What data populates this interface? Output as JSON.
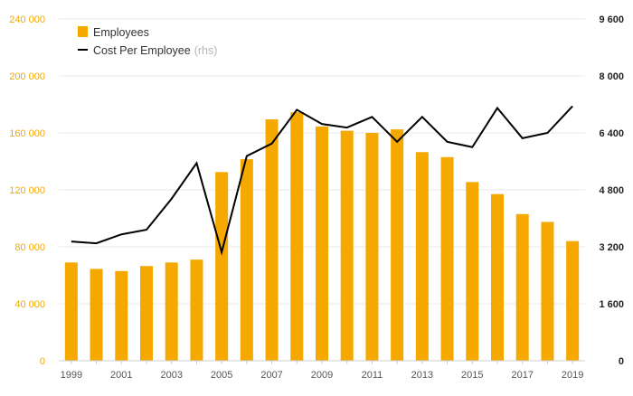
{
  "chart_data": {
    "type": "bar",
    "categories": [
      "1999",
      "2000",
      "2001",
      "2002",
      "2003",
      "2004",
      "2005",
      "2006",
      "2007",
      "2008",
      "2009",
      "2010",
      "2011",
      "2012",
      "2013",
      "2014",
      "2015",
      "2016",
      "2017",
      "2018",
      "2019"
    ],
    "x_tick_labels": [
      "1999",
      "2001",
      "2003",
      "2005",
      "2007",
      "2009",
      "2011",
      "2013",
      "2015",
      "2017",
      "2019"
    ],
    "series": [
      {
        "name": "Employees",
        "type": "bar",
        "axis": "left",
        "color": "#F5A800",
        "values": [
          69000,
          64500,
          63000,
          66500,
          69000,
          71000,
          132500,
          141500,
          169500,
          174500,
          164500,
          161500,
          160000,
          162500,
          146500,
          143000,
          125500,
          117000,
          103000,
          97500,
          84000
        ]
      },
      {
        "name": "Cost Per Employee",
        "name_suffix": "(rhs)",
        "type": "line",
        "axis": "right",
        "color": "#000000",
        "values": [
          3350,
          3300,
          3550,
          3680,
          4550,
          5550,
          3050,
          5750,
          6100,
          7050,
          6650,
          6550,
          6850,
          6150,
          6850,
          6150,
          6000,
          7100,
          6250,
          6400,
          7150
        ]
      }
    ],
    "y_left": {
      "min": 0,
      "max": 240000,
      "ticks": [
        0,
        40000,
        80000,
        120000,
        160000,
        200000,
        240000
      ],
      "tick_labels": [
        "0",
        "40 000",
        "80 000",
        "120 000",
        "160 000",
        "200 000",
        "240 000"
      ],
      "color": "#F5A800"
    },
    "y_right": {
      "min": 0,
      "max": 9600,
      "ticks": [
        0,
        1600,
        3200,
        4800,
        6400,
        8000,
        9600
      ],
      "tick_labels": [
        "0",
        "1 600",
        "3 200",
        "4 800",
        "6 400",
        "8 000",
        "9 600"
      ],
      "color": "#222222"
    },
    "grid": true,
    "legend_position": "top-left"
  }
}
